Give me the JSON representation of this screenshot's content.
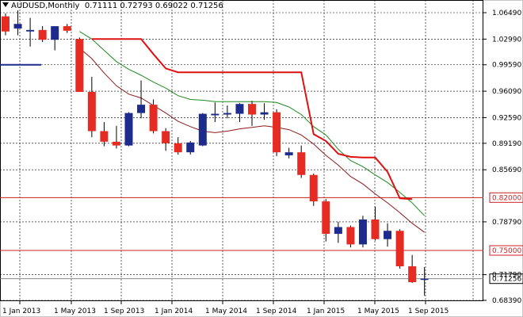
{
  "header": {
    "symbol": "AUDUSD",
    "timeframe": "Monthly",
    "ohlc": "0.71111 0.72793 0.69022 0.71256"
  },
  "colors": {
    "bull_candle": "#1c2b8c",
    "bear_candle": "#e52b22",
    "ma_fast": "#8b1a1a",
    "ma_mid": "#1f8a1f",
    "ma_slow": "#dd1111",
    "level_line": "#cc2222",
    "current_line": "#777777"
  },
  "chart_data": {
    "type": "candlestick",
    "title": "AUDUSD,Monthly",
    "ylim": [
      0.675,
      1.07
    ],
    "y_ticks": [
      "1.06490",
      "1.02990",
      "0.99590",
      "0.96090",
      "0.92590",
      "0.89190",
      "0.85690",
      "0.82000",
      "0.78790",
      "0.75000",
      "0.71790",
      "0.71256",
      "0.68390"
    ],
    "x_ticks": [
      "1 Jan 2013",
      "1 May 2013",
      "1 Sep 2013",
      "1 Jan 2014",
      "1 May 2014",
      "1 Sep 2014",
      "1 Jan 2015",
      "1 May 2015",
      "1 Sep 2015"
    ],
    "levels": [
      {
        "value": 0.82,
        "label": "0.82000"
      },
      {
        "value": 0.75,
        "label": "0.75000"
      }
    ],
    "current": {
      "value": 0.71256,
      "label": "0.71256"
    },
    "candles": [
      {
        "o": 1.06,
        "h": 1.064,
        "l": 1.035,
        "c": 1.04
      },
      {
        "o": 1.044,
        "h": 1.068,
        "l": 1.035,
        "c": 1.05
      },
      {
        "o": 1.04,
        "h": 1.058,
        "l": 1.02,
        "c": 1.042
      },
      {
        "o": 1.042,
        "h": 1.047,
        "l": 1.026,
        "c": 1.029
      },
      {
        "o": 1.029,
        "h": 1.046,
        "l": 1.015,
        "c": 1.047
      },
      {
        "o": 1.047,
        "h": 1.05,
        "l": 1.038,
        "c": 1.041
      },
      {
        "o": 1.03,
        "h": 1.032,
        "l": 0.96,
        "c": 0.96
      },
      {
        "o": 0.96,
        "h": 0.98,
        "l": 0.9,
        "c": 0.908
      },
      {
        "o": 0.908,
        "h": 0.92,
        "l": 0.888,
        "c": 0.894
      },
      {
        "o": 0.894,
        "h": 0.915,
        "l": 0.885,
        "c": 0.889
      },
      {
        "o": 0.889,
        "h": 0.933,
        "l": 0.888,
        "c": 0.932
      },
      {
        "o": 0.932,
        "h": 0.975,
        "l": 0.925,
        "c": 0.943
      },
      {
        "o": 0.943,
        "h": 0.95,
        "l": 0.905,
        "c": 0.908
      },
      {
        "o": 0.908,
        "h": 0.912,
        "l": 0.882,
        "c": 0.892
      },
      {
        "o": 0.892,
        "h": 0.9,
        "l": 0.877,
        "c": 0.88
      },
      {
        "o": 0.88,
        "h": 0.895,
        "l": 0.877,
        "c": 0.893
      },
      {
        "o": 0.889,
        "h": 0.932,
        "l": 0.888,
        "c": 0.931
      },
      {
        "o": 0.929,
        "h": 0.946,
        "l": 0.92,
        "c": 0.931
      },
      {
        "o": 0.93,
        "h": 0.942,
        "l": 0.925,
        "c": 0.932
      },
      {
        "o": 0.931,
        "h": 0.945,
        "l": 0.92,
        "c": 0.944
      },
      {
        "o": 0.944,
        "h": 0.948,
        "l": 0.915,
        "c": 0.93
      },
      {
        "o": 0.93,
        "h": 0.945,
        "l": 0.923,
        "c": 0.933
      },
      {
        "o": 0.933,
        "h": 0.937,
        "l": 0.875,
        "c": 0.88
      },
      {
        "o": 0.876,
        "h": 0.886,
        "l": 0.872,
        "c": 0.88
      },
      {
        "o": 0.88,
        "h": 0.889,
        "l": 0.846,
        "c": 0.85
      },
      {
        "o": 0.85,
        "h": 0.852,
        "l": 0.809,
        "c": 0.815
      },
      {
        "o": 0.815,
        "h": 0.818,
        "l": 0.762,
        "c": 0.772
      },
      {
        "o": 0.772,
        "h": 0.788,
        "l": 0.76,
        "c": 0.781
      },
      {
        "o": 0.781,
        "h": 0.783,
        "l": 0.754,
        "c": 0.758
      },
      {
        "o": 0.758,
        "h": 0.796,
        "l": 0.754,
        "c": 0.791
      },
      {
        "o": 0.791,
        "h": 0.808,
        "l": 0.763,
        "c": 0.765
      },
      {
        "o": 0.765,
        "h": 0.786,
        "l": 0.755,
        "c": 0.776
      },
      {
        "o": 0.776,
        "h": 0.778,
        "l": 0.726,
        "c": 0.729
      },
      {
        "o": 0.729,
        "h": 0.744,
        "l": 0.707,
        "c": 0.708
      },
      {
        "o": 0.711,
        "h": 0.728,
        "l": 0.69,
        "c": 0.7126
      }
    ],
    "series": [
      {
        "role": "ma_fast",
        "values": [
          null,
          null,
          null,
          null,
          null,
          null,
          1.018,
          1.004,
          0.985,
          0.968,
          0.957,
          0.952,
          0.942,
          0.932,
          0.921,
          0.914,
          0.908,
          0.906,
          0.908,
          0.911,
          0.913,
          0.915,
          0.913,
          0.91,
          0.903,
          0.891,
          0.876,
          0.863,
          0.848,
          0.838,
          0.825,
          0.813,
          0.8,
          0.786,
          0.774
        ]
      },
      {
        "role": "ma_mid",
        "values": [
          null,
          null,
          null,
          null,
          null,
          null,
          1.04,
          1.03,
          1.015,
          1.0,
          0.99,
          0.982,
          0.973,
          0.965,
          0.955,
          0.95,
          0.949,
          0.947,
          0.947,
          0.947,
          0.947,
          0.947,
          0.946,
          0.94,
          0.93,
          0.914,
          0.903,
          0.884,
          0.869,
          0.861,
          0.85,
          0.84,
          0.827,
          0.813,
          0.796
        ]
      },
      {
        "role": "ma_slow",
        "values": [
          null,
          null,
          null,
          null,
          null,
          null,
          null,
          1.03,
          1.03,
          1.03,
          1.03,
          1.03,
          1.01,
          0.991,
          0.986,
          0.986,
          0.986,
          0.986,
          0.986,
          0.986,
          0.986,
          0.986,
          0.986,
          0.986,
          0.986,
          0.904,
          0.895,
          0.878,
          0.874,
          0.873,
          0.873,
          0.854,
          0.819,
          0.818,
          null
        ]
      }
    ]
  }
}
